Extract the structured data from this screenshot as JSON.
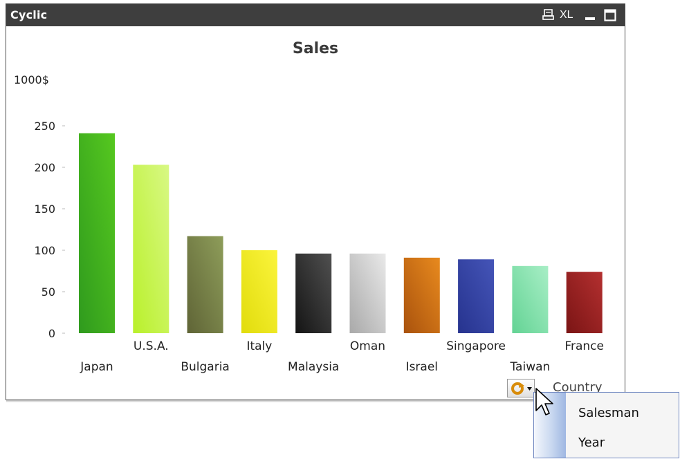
{
  "window": {
    "title": "Cyclic",
    "xl_label": "XL"
  },
  "chart_data": {
    "type": "bar",
    "title": "Sales",
    "ylabel": "1000$",
    "xlabel": "",
    "ylim": [
      0,
      275
    ],
    "yticks": [
      0,
      50,
      100,
      150,
      200,
      250
    ],
    "grid": false,
    "categories": [
      "Japan",
      "U.S.A.",
      "Bulgaria",
      "Italy",
      "Malaysia",
      "Oman",
      "Israel",
      "Singapore",
      "Taiwan",
      "France"
    ],
    "values": [
      241,
      203,
      117,
      100,
      96,
      96,
      91,
      89,
      81,
      74
    ],
    "colors": [
      [
        "#2f9a1e",
        "#56c81f"
      ],
      [
        "#b9f02a",
        "#d8f884"
      ],
      [
        "#5f6436",
        "#8e9d5a"
      ],
      [
        "#e1dc0c",
        "#fbf43c"
      ],
      [
        "#141414",
        "#505050"
      ],
      [
        "#a9a9a9",
        "#e9e9e9"
      ],
      [
        "#a9520d",
        "#e88a1e"
      ],
      [
        "#26338e",
        "#4555b8"
      ],
      [
        "#63d394",
        "#a8eec6"
      ],
      [
        "#7a1414",
        "#b43030"
      ]
    ]
  },
  "cycle_group": {
    "current": "Country",
    "menu": [
      "Salesman",
      "Year"
    ]
  }
}
